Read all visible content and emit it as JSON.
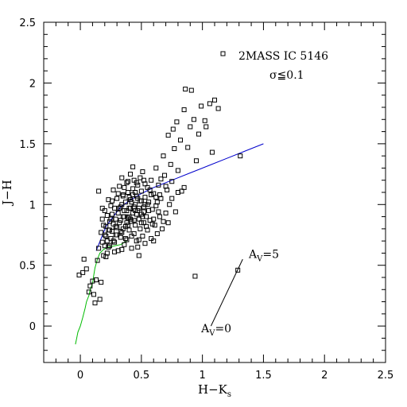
{
  "chart_data": {
    "type": "scatter",
    "xlabel": "H−K",
    "xlabel_sub": "s",
    "ylabel": "J−H",
    "xlim": [
      -0.3,
      2.5
    ],
    "ylim": [
      -0.3,
      2.5
    ],
    "x_ticks": [
      0,
      0.5,
      1,
      1.5,
      2,
      2.5
    ],
    "x_tick_labels": [
      "0",
      "0.5",
      "1",
      "1.5",
      "2",
      "2.5"
    ],
    "y_ticks": [
      0,
      0.5,
      1,
      1.5,
      2,
      2.5
    ],
    "y_tick_labels": [
      "0",
      "0.5",
      "1",
      "1.5",
      "2",
      "2.5"
    ],
    "legend": {
      "label": "2MASS IC 5146",
      "note": "σ≦0.1",
      "placement": "top-right"
    },
    "series": [
      {
        "name": "2MASS IC 5146",
        "marker": "open-square",
        "color": "#000000",
        "points": [
          [
            -0.01,
            0.42
          ],
          [
            0.02,
            0.44
          ],
          [
            0.03,
            0.55
          ],
          [
            0.05,
            0.47
          ],
          [
            0.07,
            0.28
          ],
          [
            0.08,
            0.33
          ],
          [
            0.1,
            0.37
          ],
          [
            0.11,
            0.26
          ],
          [
            0.12,
            0.19
          ],
          [
            0.13,
            0.38
          ],
          [
            0.14,
            0.54
          ],
          [
            0.15,
            0.64
          ],
          [
            0.15,
            1.11
          ],
          [
            0.16,
            0.22
          ],
          [
            0.17,
            0.77
          ],
          [
            0.17,
            0.36
          ],
          [
            0.18,
            0.69
          ],
          [
            0.18,
            0.88
          ],
          [
            0.19,
            0.58
          ],
          [
            0.2,
            0.95
          ],
          [
            0.2,
            0.75
          ],
          [
            0.21,
            0.82
          ],
          [
            0.21,
            0.57
          ],
          [
            0.22,
            0.91
          ],
          [
            0.22,
            0.7
          ],
          [
            0.23,
            1.04
          ],
          [
            0.23,
            0.79
          ],
          [
            0.24,
            0.86
          ],
          [
            0.24,
            0.66
          ],
          [
            0.25,
            0.99
          ],
          [
            0.25,
            0.72
          ],
          [
            0.26,
            0.92
          ],
          [
            0.26,
            0.78
          ],
          [
            0.27,
            0.84
          ],
          [
            0.27,
            1.12
          ],
          [
            0.28,
            0.97
          ],
          [
            0.28,
            0.69
          ],
          [
            0.29,
            0.88
          ],
          [
            0.29,
            0.75
          ],
          [
            0.3,
            1.05
          ],
          [
            0.3,
            0.81
          ],
          [
            0.31,
            0.93
          ],
          [
            0.31,
            0.62
          ],
          [
            0.32,
            1.15
          ],
          [
            0.32,
            0.85
          ],
          [
            0.33,
            0.73
          ],
          [
            0.33,
            0.98
          ],
          [
            0.34,
            1.22
          ],
          [
            0.34,
            0.77
          ],
          [
            0.35,
            0.9
          ],
          [
            0.35,
            1.08
          ],
          [
            0.36,
            0.67
          ],
          [
            0.36,
            0.95
          ],
          [
            0.37,
            1.02
          ],
          [
            0.37,
            0.82
          ],
          [
            0.38,
            1.18
          ],
          [
            0.38,
            0.71
          ],
          [
            0.39,
            0.89
          ],
          [
            0.39,
            1.1
          ],
          [
            0.4,
            0.97
          ],
          [
            0.4,
            0.79
          ],
          [
            0.41,
            1.25
          ],
          [
            0.41,
            1.04
          ],
          [
            0.42,
            0.86
          ],
          [
            0.42,
            0.64
          ],
          [
            0.43,
            1.13
          ],
          [
            0.43,
            0.93
          ],
          [
            0.44,
            0.76
          ],
          [
            0.44,
            1.2
          ],
          [
            0.45,
            1.0
          ],
          [
            0.45,
            0.83
          ],
          [
            0.46,
            1.07
          ],
          [
            0.46,
            0.7
          ],
          [
            0.47,
            0.95
          ],
          [
            0.47,
            1.16
          ],
          [
            0.48,
            0.88
          ],
          [
            0.48,
            0.58
          ],
          [
            0.49,
            1.03
          ],
          [
            0.49,
            0.8
          ],
          [
            0.5,
            1.11
          ],
          [
            0.5,
            0.92
          ],
          [
            0.51,
            0.74
          ],
          [
            0.51,
            1.27
          ],
          [
            0.52,
            0.98
          ],
          [
            0.52,
            0.85
          ],
          [
            0.53,
            1.06
          ],
          [
            0.53,
            0.68
          ],
          [
            0.54,
            0.9
          ],
          [
            0.55,
            1.14
          ],
          [
            0.55,
            0.79
          ],
          [
            0.56,
            1.02
          ],
          [
            0.57,
            0.87
          ],
          [
            0.58,
            1.2
          ],
          [
            0.58,
            0.72
          ],
          [
            0.59,
            0.96
          ],
          [
            0.6,
            1.09
          ],
          [
            0.61,
            0.83
          ],
          [
            0.62,
            1.3
          ],
          [
            0.62,
            0.99
          ],
          [
            0.63,
            0.76
          ],
          [
            0.64,
            1.16
          ],
          [
            0.65,
            0.9
          ],
          [
            0.66,
            1.05
          ],
          [
            0.67,
            0.8
          ],
          [
            0.68,
            1.4
          ],
          [
            0.69,
            1.24
          ],
          [
            0.7,
            0.93
          ],
          [
            0.71,
            1.12
          ],
          [
            0.72,
            1.57
          ],
          [
            0.73,
            1.0
          ],
          [
            0.74,
            1.33
          ],
          [
            0.75,
            1.19
          ],
          [
            0.76,
            1.62
          ],
          [
            0.77,
            1.46
          ],
          [
            0.78,
            0.94
          ],
          [
            0.79,
            1.68
          ],
          [
            0.8,
            1.28
          ],
          [
            0.82,
            1.53
          ],
          [
            0.83,
            1.11
          ],
          [
            0.85,
            1.78
          ],
          [
            0.86,
            1.95
          ],
          [
            0.88,
            1.47
          ],
          [
            0.9,
            1.64
          ],
          [
            0.91,
            1.94
          ],
          [
            0.93,
            1.7
          ],
          [
            0.94,
            0.41
          ],
          [
            0.95,
            1.36
          ],
          [
            0.97,
            1.58
          ],
          [
            0.99,
            1.81
          ],
          [
            1.02,
            1.69
          ],
          [
            1.03,
            1.64
          ],
          [
            1.06,
            1.83
          ],
          [
            1.08,
            1.43
          ],
          [
            1.1,
            1.86
          ],
          [
            1.13,
            1.79
          ],
          [
            1.29,
            0.46
          ],
          [
            1.31,
            1.4
          ],
          [
            0.35,
            1.07
          ],
          [
            0.37,
            0.72
          ],
          [
            0.39,
            1.19
          ],
          [
            0.41,
            0.88
          ],
          [
            0.43,
            1.31
          ],
          [
            0.45,
            0.95
          ],
          [
            0.47,
            0.65
          ],
          [
            0.49,
            1.22
          ],
          [
            0.51,
            0.9
          ],
          [
            0.53,
            1.17
          ],
          [
            0.33,
            0.87
          ],
          [
            0.31,
            1.09
          ],
          [
            0.29,
            0.82
          ],
          [
            0.27,
            0.7
          ],
          [
            0.25,
            0.88
          ],
          [
            0.23,
            0.65
          ],
          [
            0.21,
            0.74
          ],
          [
            0.19,
            0.83
          ],
          [
            0.18,
            0.97
          ],
          [
            0.26,
            1.03
          ],
          [
            0.28,
            0.61
          ],
          [
            0.3,
            0.75
          ],
          [
            0.32,
            0.97
          ],
          [
            0.34,
            0.63
          ],
          [
            0.36,
            1.14
          ],
          [
            0.38,
            0.85
          ],
          [
            0.4,
            1.06
          ],
          [
            0.42,
            0.74
          ],
          [
            0.44,
            0.98
          ],
          [
            0.46,
            1.18
          ],
          [
            0.48,
            0.71
          ],
          [
            0.5,
            1.03
          ],
          [
            0.52,
            1.2
          ],
          [
            0.54,
            0.82
          ],
          [
            0.56,
            0.95
          ],
          [
            0.58,
            1.08
          ],
          [
            0.6,
            0.88
          ],
          [
            0.62,
            1.06
          ],
          [
            0.64,
            0.94
          ],
          [
            0.66,
            1.21
          ],
          [
            0.68,
            0.86
          ],
          [
            0.35,
            0.8
          ],
          [
            0.4,
            0.9
          ],
          [
            0.45,
            1.1
          ],
          [
            0.5,
            0.85
          ],
          [
            0.55,
            1.0
          ],
          [
            0.6,
            0.7
          ],
          [
            0.42,
            1.02
          ],
          [
            0.38,
            0.95
          ],
          [
            0.44,
            0.87
          ],
          [
            0.47,
            1.05
          ],
          [
            0.36,
            0.9
          ],
          [
            0.33,
            0.78
          ],
          [
            0.39,
            0.83
          ],
          [
            0.46,
            0.92
          ],
          [
            0.52,
            0.94
          ],
          [
            0.57,
            1.12
          ],
          [
            0.63,
            1.02
          ],
          [
            0.7,
            1.15
          ],
          [
            0.75,
            1.05
          ],
          [
            0.8,
            1.1
          ],
          [
            0.85,
            1.14
          ],
          [
            0.72,
            0.85
          ],
          [
            0.24,
            0.79
          ],
          [
            0.22,
            0.6
          ],
          [
            0.2,
            0.66
          ],
          [
            0.34,
            1.0
          ],
          [
            0.41,
            0.97
          ],
          [
            0.43,
            1.08
          ],
          [
            0.48,
            0.97
          ],
          [
            0.53,
            1.0
          ],
          [
            0.59,
            0.84
          ],
          [
            0.65,
            1.08
          ]
        ]
      },
      {
        "name": "",
        "type": "line",
        "color": "#00bb00",
        "points": [
          [
            -0.04,
            -0.15
          ],
          [
            -0.03,
            -0.1
          ],
          [
            -0.02,
            -0.05
          ],
          [
            0.0,
            0.0
          ],
          [
            0.02,
            0.07
          ],
          [
            0.04,
            0.15
          ],
          [
            0.05,
            0.2
          ],
          [
            0.07,
            0.25
          ],
          [
            0.08,
            0.3
          ],
          [
            0.1,
            0.35
          ],
          [
            0.11,
            0.42
          ],
          [
            0.12,
            0.48
          ],
          [
            0.14,
            0.55
          ],
          [
            0.16,
            0.6
          ],
          [
            0.19,
            0.63
          ],
          [
            0.23,
            0.65
          ],
          [
            0.28,
            0.66
          ],
          [
            0.33,
            0.67
          ],
          [
            0.38,
            0.7
          ]
        ]
      },
      {
        "name": "",
        "type": "line",
        "color": "#0000cc",
        "points": [
          [
            0.13,
            0.62
          ],
          [
            0.17,
            0.72
          ],
          [
            0.21,
            0.82
          ],
          [
            0.27,
            0.9
          ],
          [
            0.33,
            0.98
          ],
          [
            0.4,
            1.03
          ],
          [
            0.5,
            1.09
          ],
          [
            0.6,
            1.14
          ],
          [
            0.75,
            1.2
          ],
          [
            0.9,
            1.26
          ],
          [
            1.05,
            1.32
          ],
          [
            1.2,
            1.38
          ],
          [
            1.35,
            1.44
          ],
          [
            1.5,
            1.5
          ]
        ]
      },
      {
        "name": "",
        "type": "line",
        "color": "#000000",
        "points": [
          [
            1.07,
            0.0
          ],
          [
            1.33,
            0.55
          ]
        ]
      }
    ],
    "annotations": [
      {
        "text": "A",
        "sub": "V",
        "suffix": "=0",
        "x": 0.99,
        "y": -0.05
      },
      {
        "text": "A",
        "sub": "V",
        "suffix": "=5",
        "x": 1.38,
        "y": 0.56
      }
    ]
  }
}
